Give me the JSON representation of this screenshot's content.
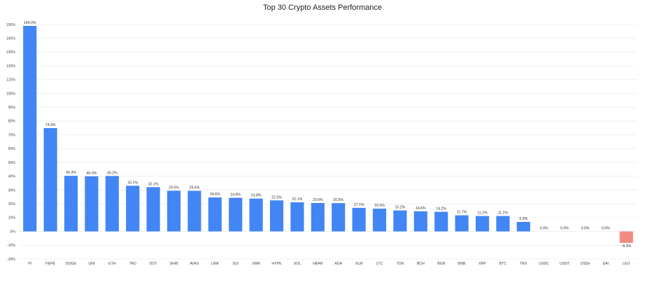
{
  "chart_data": {
    "type": "bar",
    "title": "Top 30 Crypto Assets Performance",
    "xlabel": "",
    "ylabel": "",
    "ylim": [
      -20,
      150
    ],
    "yticks": [
      -20,
      -10,
      0,
      10,
      20,
      30,
      40,
      50,
      60,
      70,
      80,
      90,
      100,
      110,
      120,
      130,
      140,
      150
    ],
    "grid": true,
    "legend": "none",
    "categories": [
      "PI",
      "PEPE",
      "DOGE",
      "UNI",
      "ETH",
      "TAO",
      "DOT",
      "SHIB",
      "AVAX",
      "LINK",
      "SUI",
      "XMR",
      "HYPE",
      "SOL",
      "HBAR",
      "ADA",
      "XLM",
      "LTC",
      "TON",
      "BCH",
      "BGB",
      "BNB",
      "XRP",
      "BTC",
      "TRX",
      "USDC",
      "USDT",
      "USDe",
      "DAI",
      "LEO"
    ],
    "values": [
      149.0,
      74.9,
      40.3,
      40.0,
      40.2,
      33.1,
      32.1,
      29.5,
      29.4,
      24.6,
      24.4,
      23.8,
      22.5,
      21.1,
      20.6,
      20.5,
      17.1,
      16.5,
      15.2,
      14.6,
      14.2,
      11.7,
      11.2,
      11.2,
      6.9,
      0.0,
      0.0,
      0.0,
      0.0,
      -8.3
    ],
    "data_labels": [
      "149.0%",
      "74.9%",
      "40.3%",
      "40.0%",
      "40.2%",
      "33.1%",
      "32.1%",
      "29.5%",
      "29.4%",
      "24.6%",
      "24.4%",
      "23.8%",
      "22.5%",
      "21.1%",
      "20.6%",
      "20.5%",
      "17.1%",
      "16.5%",
      "15.2%",
      "14.6%",
      "14.2%",
      "11.7%",
      "11.2%",
      "11.2%",
      "6.9%",
      "0.0%",
      "0.0%",
      "0.0%",
      "0.0%",
      "-8.3%"
    ],
    "colors": {
      "positive": "#4285f4",
      "negative": "#f28b82"
    }
  }
}
